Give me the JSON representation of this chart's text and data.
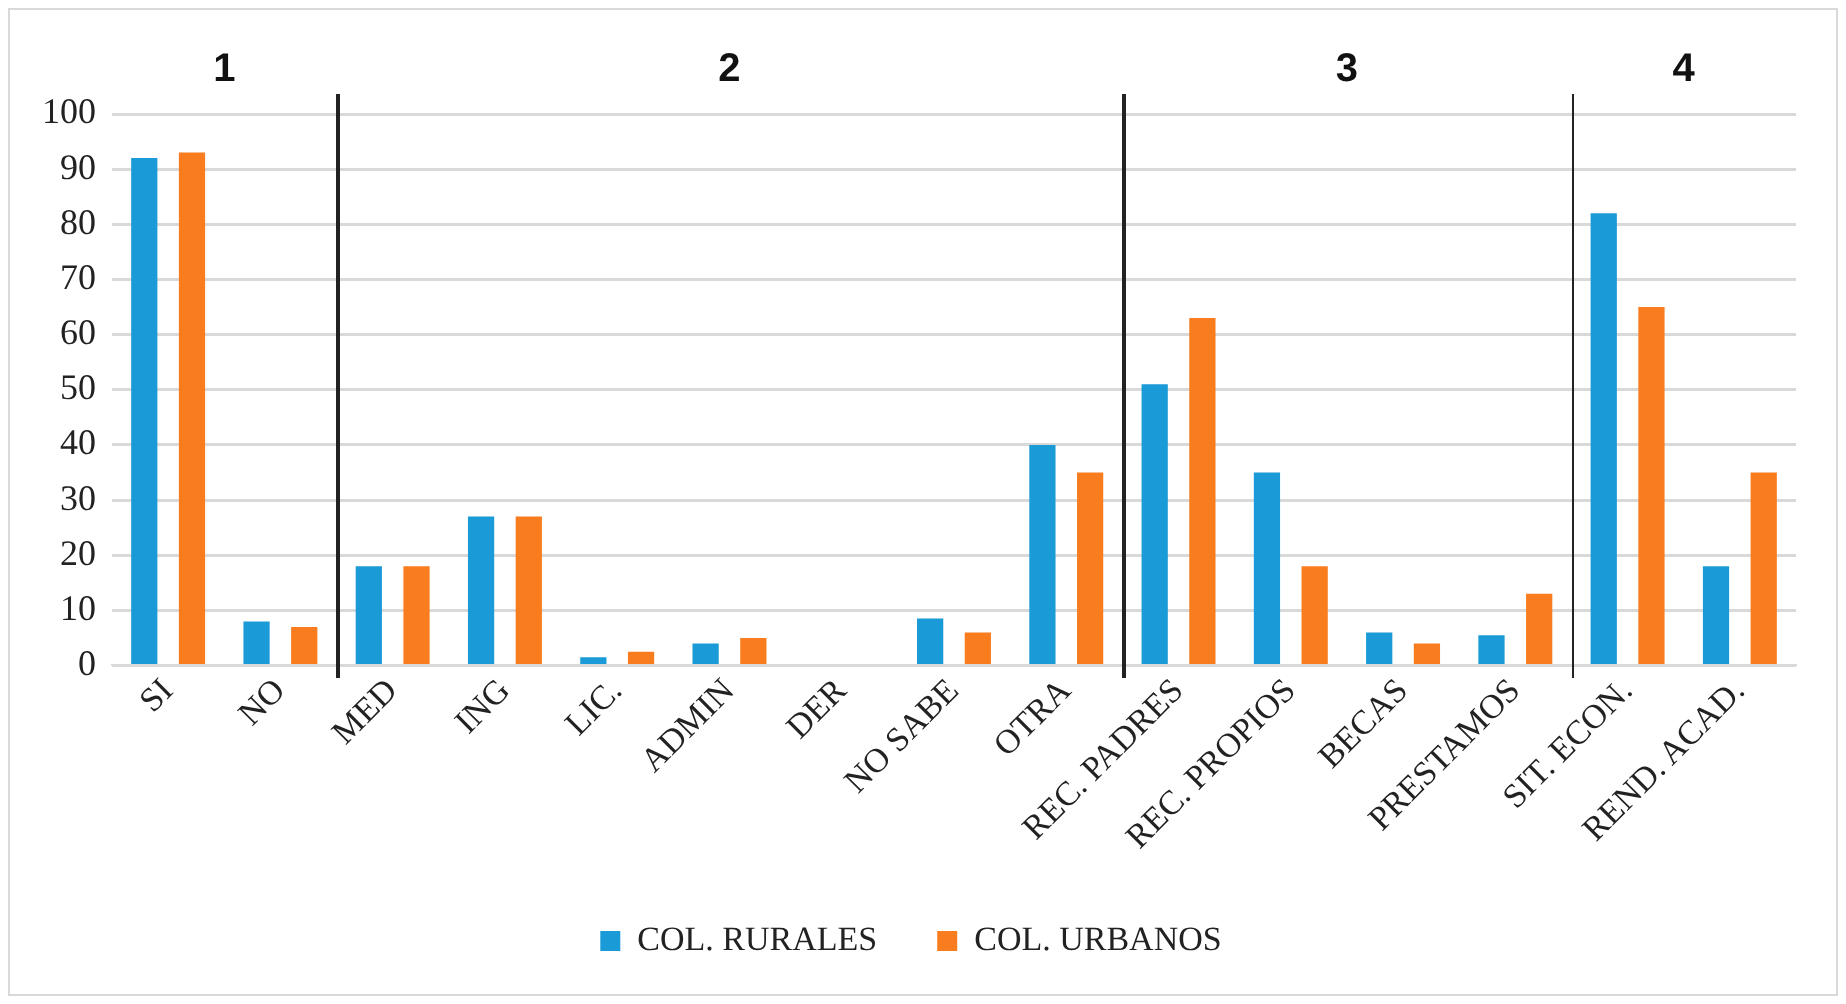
{
  "chart_data": {
    "type": "bar",
    "categories": [
      "SI",
      "NO",
      "MED",
      "ING",
      "LIC.",
      "ADMIN",
      "DER",
      "NO SABE",
      "OTRA",
      "REC. PADRES",
      "REC. PROPIOS",
      "BECAS",
      "PRESTAMOS",
      "SIT. ECON.",
      "REND. ACAD."
    ],
    "series": [
      {
        "name": "COL. RURALES",
        "color": "#1a9ad6",
        "values": [
          92,
          8,
          18,
          27,
          1.5,
          4,
          0,
          8.5,
          40,
          51,
          35,
          6,
          5.5,
          82,
          18
        ]
      },
      {
        "name": "COL. URBANOS",
        "color": "#f97d1f",
        "values": [
          93,
          7,
          18,
          27,
          2.5,
          5,
          0,
          6,
          35,
          63,
          18,
          4,
          13,
          65,
          35
        ]
      }
    ],
    "ylim": [
      0,
      100
    ],
    "yticks": [
      0,
      10,
      20,
      30,
      40,
      50,
      60,
      70,
      80,
      90,
      100
    ],
    "grid": "y",
    "legend": "bottom",
    "annotations": [
      "1",
      "2",
      "3",
      "4"
    ]
  }
}
